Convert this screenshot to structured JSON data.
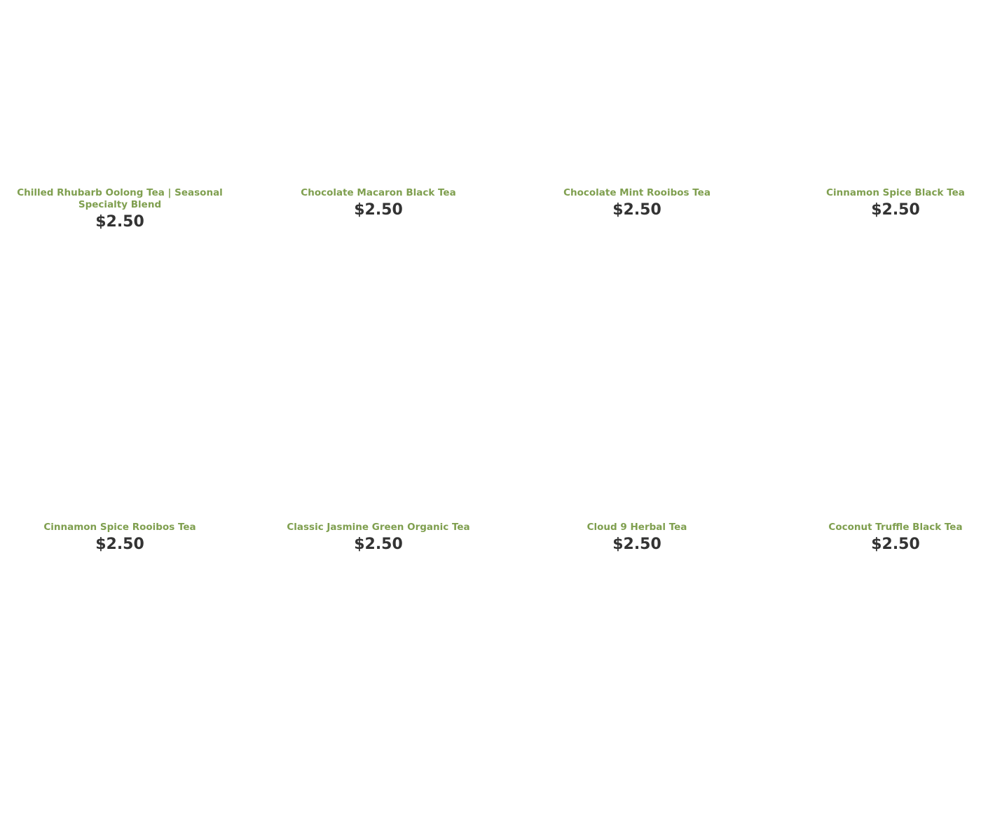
{
  "products": [
    {
      "name": "Chilled Rhubarb Oolong Tea | Seasonal Specialty Blend",
      "price": "$2.50"
    },
    {
      "name": "Chocolate Macaron Black Tea",
      "price": "$2.50"
    },
    {
      "name": "Chocolate Mint Rooibos Tea",
      "price": "$2.50"
    },
    {
      "name": "Cinnamon Spice Black Tea",
      "price": "$2.50"
    },
    {
      "name": "Cinnamon Spice Rooibos Tea",
      "price": "$2.50"
    },
    {
      "name": "Classic Jasmine Green Organic Tea",
      "price": "$2.50"
    },
    {
      "name": "Cloud 9 Herbal Tea",
      "price": "$2.50"
    },
    {
      "name": "Coconut Truffle Black Tea",
      "price": "$2.50"
    }
  ],
  "colors": {
    "title": "#7f9f4f",
    "price": "#333333"
  }
}
